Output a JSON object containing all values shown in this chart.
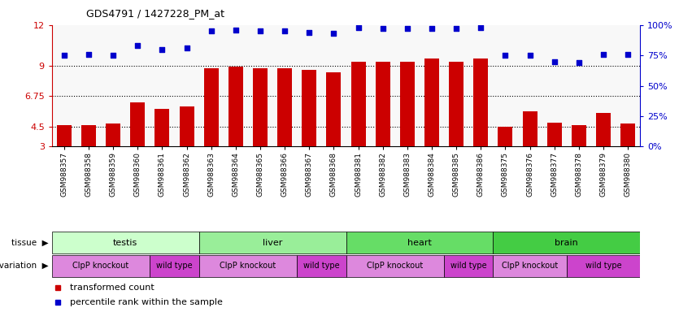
{
  "title": "GDS4791 / 1427228_PM_at",
  "samples": [
    "GSM988357",
    "GSM988358",
    "GSM988359",
    "GSM988360",
    "GSM988361",
    "GSM988362",
    "GSM988363",
    "GSM988364",
    "GSM988365",
    "GSM988366",
    "GSM988367",
    "GSM988368",
    "GSM988381",
    "GSM988382",
    "GSM988383",
    "GSM988384",
    "GSM988385",
    "GSM988386",
    "GSM988375",
    "GSM988376",
    "GSM988377",
    "GSM988378",
    "GSM988379",
    "GSM988380"
  ],
  "bar_values": [
    4.6,
    4.6,
    4.7,
    6.3,
    5.8,
    6.0,
    8.8,
    8.9,
    8.8,
    8.8,
    8.7,
    8.5,
    9.3,
    9.3,
    9.3,
    9.5,
    9.3,
    9.5,
    4.5,
    5.6,
    4.8,
    4.6,
    5.5,
    4.7
  ],
  "dot_values": [
    75,
    76,
    75,
    83,
    80,
    81,
    95,
    96,
    95,
    95,
    94,
    93,
    98,
    97,
    97,
    97,
    97,
    98,
    75,
    75,
    70,
    69,
    76,
    76
  ],
  "bar_color": "#cc0000",
  "dot_color": "#0000cc",
  "ylim_left": [
    3,
    12
  ],
  "ylim_right": [
    0,
    100
  ],
  "yticks_left": [
    3,
    4.5,
    6.75,
    9,
    12
  ],
  "yticks_right": [
    0,
    25,
    50,
    75,
    100
  ],
  "ytick_labels_left": [
    "3",
    "4.5",
    "6.75",
    "9",
    "12"
  ],
  "ytick_labels_right": [
    "0%",
    "25%",
    "50%",
    "75%",
    "100%"
  ],
  "hlines": [
    4.5,
    6.75,
    9
  ],
  "tissues": [
    {
      "label": "testis",
      "start": 0,
      "end": 6,
      "color": "#ccffcc"
    },
    {
      "label": "liver",
      "start": 6,
      "end": 12,
      "color": "#99ee99"
    },
    {
      "label": "heart",
      "start": 12,
      "end": 18,
      "color": "#66dd66"
    },
    {
      "label": "brain",
      "start": 18,
      "end": 24,
      "color": "#44cc44"
    }
  ],
  "genotypes": [
    {
      "label": "ClpP knockout",
      "start": 0,
      "end": 4,
      "color": "#dd88dd"
    },
    {
      "label": "wild type",
      "start": 4,
      "end": 6,
      "color": "#cc44cc"
    },
    {
      "label": "ClpP knockout",
      "start": 6,
      "end": 10,
      "color": "#dd88dd"
    },
    {
      "label": "wild type",
      "start": 10,
      "end": 12,
      "color": "#cc44cc"
    },
    {
      "label": "ClpP knockout",
      "start": 12,
      "end": 16,
      "color": "#dd88dd"
    },
    {
      "label": "wild type",
      "start": 16,
      "end": 18,
      "color": "#cc44cc"
    },
    {
      "label": "ClpP knockout",
      "start": 18,
      "end": 21,
      "color": "#dd88dd"
    },
    {
      "label": "wild type",
      "start": 21,
      "end": 24,
      "color": "#cc44cc"
    }
  ],
  "legend_items": [
    {
      "label": "transformed count",
      "color": "#cc0000"
    },
    {
      "label": "percentile rank within the sample",
      "color": "#0000cc"
    }
  ],
  "bg_color": "#f8f8f8"
}
